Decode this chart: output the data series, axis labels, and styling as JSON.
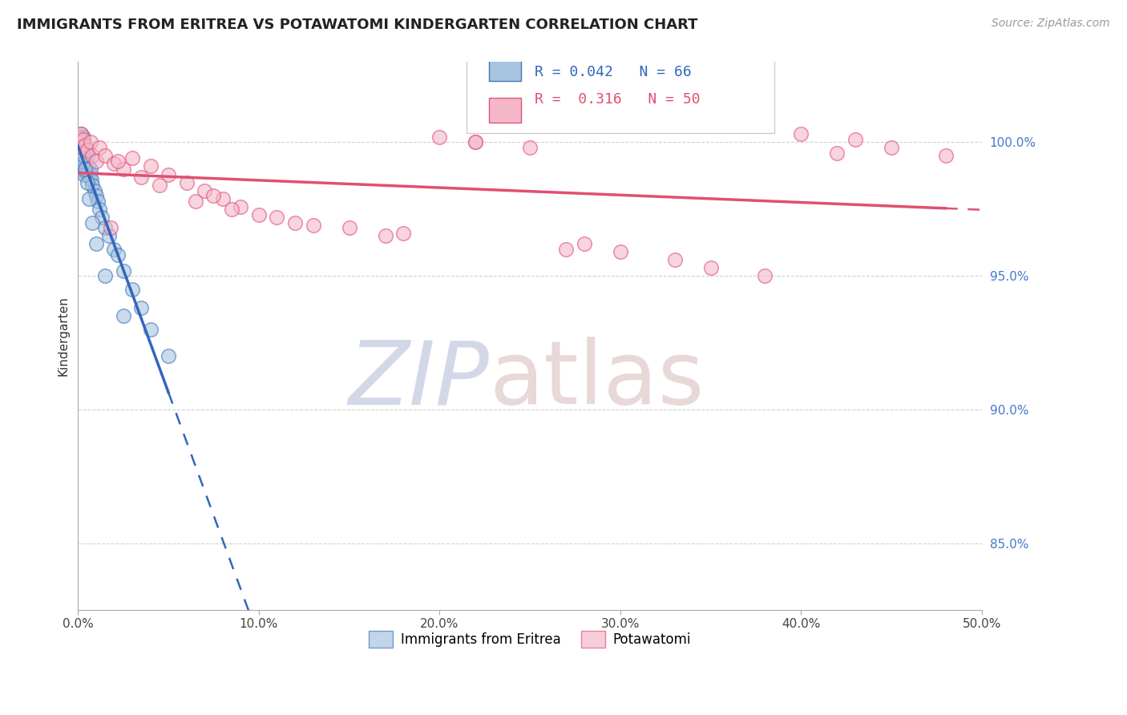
{
  "title": "IMMIGRANTS FROM ERITREA VS POTAWATOMI KINDERGARTEN CORRELATION CHART",
  "source_text": "Source: ZipAtlas.com",
  "ylabel": "Kindergarten",
  "legend_label1": "Immigrants from Eritrea",
  "legend_label2": "Potawatomi",
  "r1": 0.042,
  "n1": 66,
  "r2": 0.316,
  "n2": 50,
  "color1": "#a8c4e0",
  "color2": "#f4b8c8",
  "edge1": "#4477bb",
  "edge2": "#e05580",
  "trend1_color": "#3366bb",
  "trend2_color": "#e05070",
  "xlim": [
    0.0,
    50.0
  ],
  "ylim": [
    82.5,
    103.0
  ],
  "yticks": [
    85.0,
    90.0,
    95.0,
    100.0
  ],
  "xticks": [
    0.0,
    10.0,
    20.0,
    30.0,
    40.0,
    50.0
  ],
  "watermark_zip_color": "#b0b8d8",
  "watermark_atlas_color": "#d8b8b8",
  "background_color": "#ffffff",
  "blue_x": [
    0.05,
    0.08,
    0.1,
    0.1,
    0.12,
    0.12,
    0.15,
    0.15,
    0.15,
    0.18,
    0.2,
    0.2,
    0.2,
    0.22,
    0.25,
    0.25,
    0.28,
    0.3,
    0.3,
    0.3,
    0.32,
    0.35,
    0.35,
    0.38,
    0.4,
    0.4,
    0.42,
    0.45,
    0.5,
    0.5,
    0.55,
    0.6,
    0.65,
    0.7,
    0.75,
    0.8,
    0.9,
    1.0,
    1.1,
    1.2,
    1.3,
    1.5,
    1.7,
    2.0,
    2.2,
    2.5,
    3.0,
    3.5,
    4.0,
    5.0,
    0.08,
    0.1,
    0.12,
    0.15,
    0.18,
    0.2,
    0.25,
    0.3,
    0.35,
    0.4,
    0.5,
    0.6,
    0.8,
    1.0,
    1.5,
    2.5
  ],
  "blue_y": [
    99.8,
    100.0,
    99.5,
    100.2,
    99.6,
    100.1,
    99.3,
    99.8,
    100.3,
    99.0,
    99.4,
    99.9,
    100.0,
    99.2,
    99.5,
    100.1,
    99.0,
    99.3,
    99.7,
    100.2,
    99.1,
    99.4,
    99.8,
    98.9,
    99.2,
    99.6,
    99.0,
    99.3,
    98.8,
    99.5,
    99.1,
    98.9,
    98.7,
    99.0,
    98.6,
    98.4,
    98.2,
    98.0,
    97.8,
    97.5,
    97.2,
    96.8,
    96.5,
    96.0,
    95.8,
    95.2,
    94.5,
    93.8,
    93.0,
    92.0,
    99.7,
    99.9,
    100.1,
    99.4,
    99.6,
    99.8,
    99.2,
    99.5,
    98.8,
    99.0,
    98.5,
    97.9,
    97.0,
    96.2,
    95.0,
    93.5
  ],
  "pink_x": [
    0.05,
    0.1,
    0.15,
    0.2,
    0.3,
    0.4,
    0.5,
    0.7,
    0.8,
    1.0,
    1.2,
    1.5,
    2.0,
    2.5,
    3.0,
    4.0,
    5.0,
    6.0,
    7.0,
    8.0,
    9.0,
    10.0,
    12.0,
    15.0,
    17.0,
    20.0,
    22.0,
    25.0,
    28.0,
    30.0,
    33.0,
    35.0,
    38.0,
    40.0,
    43.0,
    45.0,
    48.0,
    1.8,
    3.5,
    6.5,
    8.5,
    11.0,
    13.0,
    22.0,
    7.5,
    2.2,
    4.5,
    18.0,
    27.0,
    42.0
  ],
  "pink_y": [
    100.2,
    100.0,
    100.3,
    99.8,
    100.1,
    99.9,
    99.7,
    100.0,
    99.5,
    99.3,
    99.8,
    99.5,
    99.2,
    99.0,
    99.4,
    99.1,
    98.8,
    98.5,
    98.2,
    97.9,
    97.6,
    97.3,
    97.0,
    96.8,
    96.5,
    100.2,
    100.0,
    99.8,
    96.2,
    95.9,
    95.6,
    95.3,
    95.0,
    100.3,
    100.1,
    99.8,
    99.5,
    96.8,
    98.7,
    97.8,
    97.5,
    97.2,
    96.9,
    100.0,
    98.0,
    99.3,
    98.4,
    96.6,
    96.0,
    99.6
  ]
}
